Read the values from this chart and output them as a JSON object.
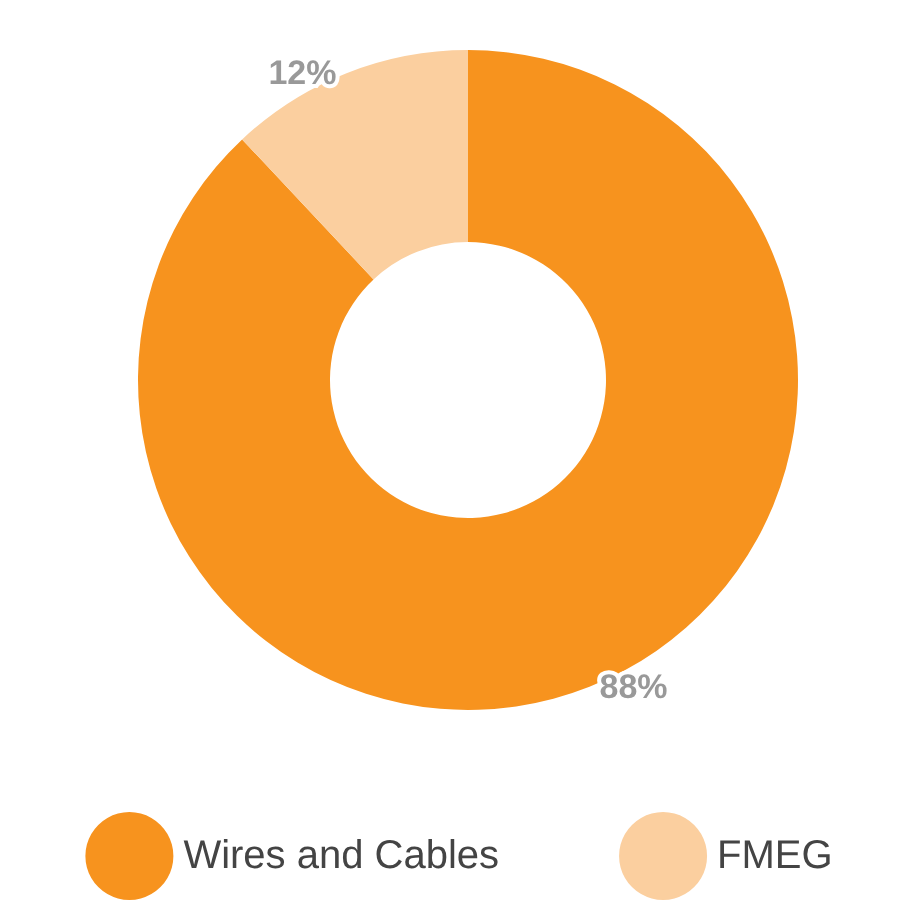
{
  "chart_data": {
    "type": "donut",
    "categories": [
      "Wires and Cables",
      "FMEG"
    ],
    "values": [
      88,
      12
    ],
    "colors": [
      "#f7931e",
      "#fbcf9f"
    ],
    "value_labels": [
      "88%",
      "12%"
    ],
    "legend": "bottom"
  }
}
